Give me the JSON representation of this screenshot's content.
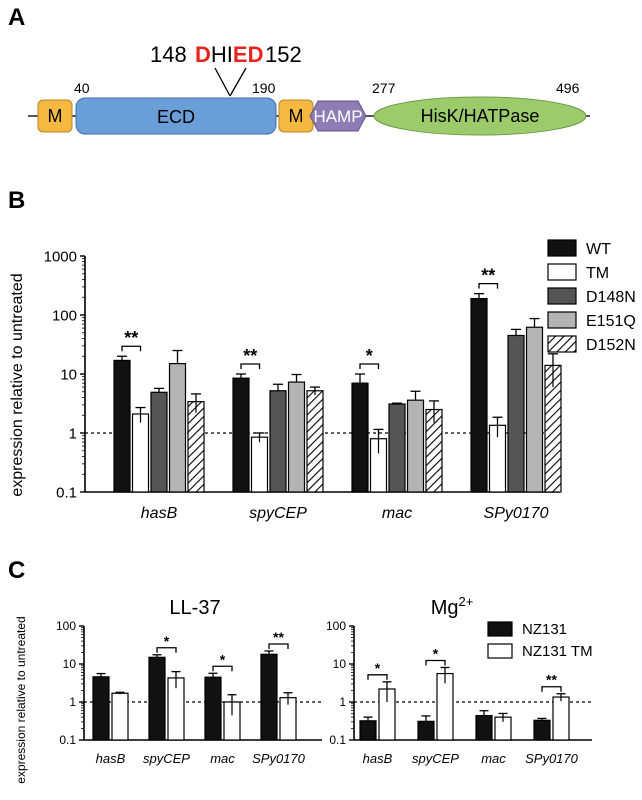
{
  "panels": {
    "A": {
      "letter": "A"
    },
    "B": {
      "letter": "B"
    },
    "C": {
      "letter": "C"
    }
  },
  "domain_diagram": {
    "motif_start": "148",
    "motif_end": "152",
    "motif_segments": [
      {
        "text": "D",
        "color": "#e8231f"
      },
      {
        "text": "HI",
        "color": "#000000"
      },
      {
        "text": "ED",
        "color": "#e8231f"
      }
    ],
    "positions": [
      "40",
      "190",
      "277",
      "496"
    ],
    "domains": [
      {
        "label": "M",
        "color": "#f5b942"
      },
      {
        "label": "ECD",
        "color": "#6a9ed8"
      },
      {
        "label": "M",
        "color": "#f5b942"
      },
      {
        "label": "HAMP",
        "color": "#8e7cb4"
      },
      {
        "label": "HisK/HATPase",
        "color": "#9ccb6c"
      }
    ]
  },
  "chart_data": [
    {
      "type": "bar",
      "ylabel": "expression relative to untreated",
      "yscale": "log",
      "ylim": [
        0.1,
        1000
      ],
      "yticks": [
        "0.1",
        "1",
        "10",
        "100",
        "1000"
      ],
      "reference_line": 1,
      "categories": [
        "hasB",
        "spyCEP",
        "mac",
        "SPy0170"
      ],
      "series": [
        {
          "name": "WT",
          "pattern": "black",
          "values": [
            17,
            8.5,
            7,
            190
          ],
          "errors": [
            3,
            1.5,
            3,
            40
          ]
        },
        {
          "name": "TM",
          "pattern": "white",
          "values": [
            2.1,
            0.85,
            0.8,
            1.35
          ],
          "errors": [
            0.6,
            0.15,
            0.35,
            0.5
          ]
        },
        {
          "name": "D148N",
          "pattern": "darkgray",
          "values": [
            4.9,
            5.2,
            3.1,
            45
          ],
          "errors": [
            0.8,
            1.5,
            0.1,
            12
          ]
        },
        {
          "name": "E151Q",
          "pattern": "lightgray",
          "values": [
            15,
            7.3,
            3.6,
            62
          ],
          "errors": [
            10,
            2.5,
            1.5,
            25
          ]
        },
        {
          "name": "D152N",
          "pattern": "hatched",
          "values": [
            3.4,
            5.2,
            2.5,
            14
          ],
          "errors": [
            1.2,
            0.8,
            1.0,
            8
          ]
        }
      ],
      "significance": [
        {
          "category": "hasB",
          "label": "**"
        },
        {
          "category": "spyCEP",
          "label": "**"
        },
        {
          "category": "mac",
          "label": "*"
        },
        {
          "category": "SPy0170",
          "label": "**"
        }
      ],
      "legend_position": "right"
    },
    {
      "type": "bar",
      "title": "LL-37",
      "ylabel": "expression relative to untreated",
      "yscale": "log",
      "ylim": [
        0.1,
        100
      ],
      "yticks": [
        "0.1",
        "1",
        "10",
        "100"
      ],
      "reference_line": 1,
      "categories": [
        "hasB",
        "spyCEP",
        "mac",
        "SPy0170"
      ],
      "series": [
        {
          "name": "NZ131",
          "pattern": "black",
          "values": [
            4.6,
            15,
            4.5,
            18
          ],
          "errors": [
            1.0,
            2.5,
            1.2,
            4
          ]
        },
        {
          "name": "NZ131 TM",
          "pattern": "white",
          "values": [
            1.7,
            4.3,
            1.0,
            1.3
          ],
          "errors": [
            0.1,
            2.0,
            0.55,
            0.45
          ]
        }
      ],
      "significance": [
        {
          "category": "spyCEP",
          "label": "*"
        },
        {
          "category": "mac",
          "label": "*"
        },
        {
          "category": "SPy0170",
          "label": "**"
        }
      ]
    },
    {
      "type": "bar",
      "title": "Mg2+",
      "yscale": "log",
      "ylim": [
        0.1,
        100
      ],
      "yticks": [
        "0.1",
        "1",
        "10",
        "100"
      ],
      "reference_line": 1,
      "categories": [
        "hasB",
        "spyCEP",
        "mac",
        "SPy0170"
      ],
      "series": [
        {
          "name": "NZ131",
          "pattern": "black",
          "values": [
            0.32,
            0.31,
            0.44,
            0.33
          ],
          "errors": [
            0.08,
            0.12,
            0.15,
            0.04
          ]
        },
        {
          "name": "NZ131 TM",
          "pattern": "white",
          "values": [
            2.2,
            5.6,
            0.4,
            1.35
          ],
          "errors": [
            1.2,
            2.5,
            0.1,
            0.3
          ]
        }
      ],
      "significance": [
        {
          "category": "hasB",
          "label": "*"
        },
        {
          "category": "spyCEP",
          "label": "*"
        },
        {
          "category": "SPy0170",
          "label": "**"
        }
      ],
      "legend_position": "right"
    }
  ]
}
